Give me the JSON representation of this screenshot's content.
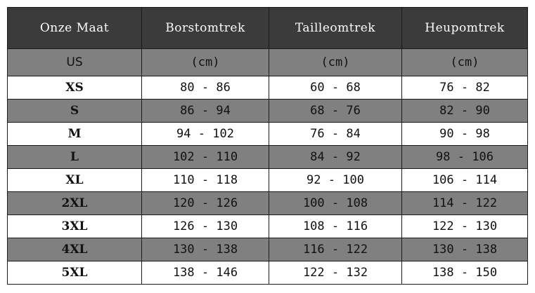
{
  "table": {
    "headers": [
      "Onze Maat",
      "Borstomtrek",
      "Tailleomtrek",
      "Heupomtrek"
    ],
    "unit_row": [
      "US",
      "(cm)",
      "(cm)",
      "(cm)"
    ],
    "rows": [
      [
        "XS",
        "80 - 86",
        "60 - 68",
        "76 - 82"
      ],
      [
        "S",
        "86 - 94",
        "68 - 76",
        "82 - 90"
      ],
      [
        "M",
        "94 - 102",
        "76 - 84",
        "90 - 98"
      ],
      [
        "L",
        "102 - 110",
        "84 - 92",
        "98 - 106"
      ],
      [
        "XL",
        "110 - 118",
        "92 - 100",
        "106 - 114"
      ],
      [
        "2XL",
        "120 - 126",
        "100 - 108",
        "114 - 122"
      ],
      [
        "3XL",
        "126 - 130",
        "108 - 116",
        "122 - 130"
      ],
      [
        "4XL",
        "130 - 138",
        "116 - 122",
        "130 - 138"
      ],
      [
        "5XL",
        "138 - 146",
        "122 - 132",
        "138 - 150"
      ]
    ]
  },
  "colors": {
    "header_bg": "#3b3b3b",
    "header_text": "#ffffff",
    "shaded_row_bg": "#808080",
    "plain_row_bg": "#ffffff",
    "border": "#1a1a1a"
  }
}
